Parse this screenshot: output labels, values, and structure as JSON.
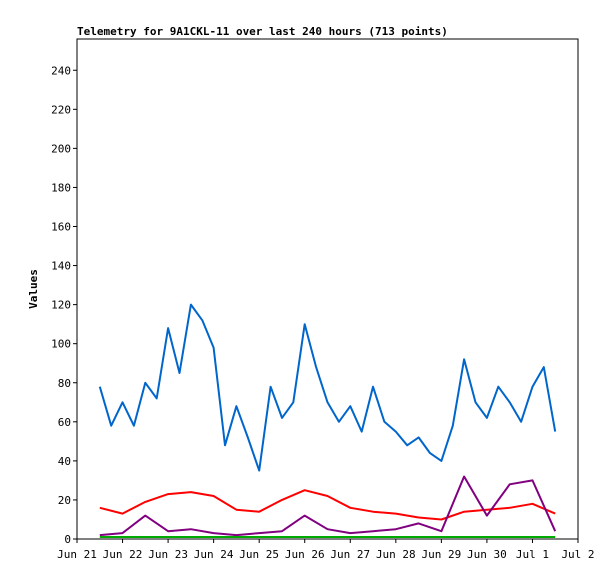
{
  "chart_data": {
    "type": "line",
    "title": "Telemetry for 9A1CKL-11 over last 240 hours (713 points)",
    "xlabel": "",
    "ylabel": "Values",
    "ylim": [
      0,
      256
    ],
    "yticks": [
      0,
      20,
      40,
      60,
      80,
      100,
      120,
      140,
      160,
      180,
      200,
      220,
      240
    ],
    "xlim": [
      "2021-06-21",
      "2021-07-02"
    ],
    "xticks": [
      "Jun 21",
      "Jun 22",
      "Jun 23",
      "Jun 24",
      "Jun 25",
      "Jun 26",
      "Jun 27",
      "Jun 28",
      "Jun 29",
      "Jun 30",
      "Jul 1",
      "Jul 2"
    ],
    "grid": false,
    "legend": "none",
    "series": [
      {
        "color": "#0066cc",
        "points": [
          [
            "2021-06-21T12:00",
            78
          ],
          [
            "2021-06-21T18:00",
            58
          ],
          [
            "2021-06-22T00:00",
            70
          ],
          [
            "2021-06-22T06:00",
            58
          ],
          [
            "2021-06-22T12:00",
            80
          ],
          [
            "2021-06-22T18:00",
            72
          ],
          [
            "2021-06-23T00:00",
            108
          ],
          [
            "2021-06-23T06:00",
            85
          ],
          [
            "2021-06-23T12:00",
            120
          ],
          [
            "2021-06-23T18:00",
            112
          ],
          [
            "2021-06-24T00:00",
            98
          ],
          [
            "2021-06-24T06:00",
            48
          ],
          [
            "2021-06-24T12:00",
            68
          ],
          [
            "2021-06-24T18:00",
            52
          ],
          [
            "2021-06-25T00:00",
            35
          ],
          [
            "2021-06-25T06:00",
            78
          ],
          [
            "2021-06-25T12:00",
            62
          ],
          [
            "2021-06-25T18:00",
            70
          ],
          [
            "2021-06-26T00:00",
            110
          ],
          [
            "2021-06-26T06:00",
            88
          ],
          [
            "2021-06-26T12:00",
            70
          ],
          [
            "2021-06-26T18:00",
            60
          ],
          [
            "2021-06-27T00:00",
            68
          ],
          [
            "2021-06-27T06:00",
            55
          ],
          [
            "2021-06-27T12:00",
            78
          ],
          [
            "2021-06-27T18:00",
            60
          ],
          [
            "2021-06-28T00:00",
            55
          ],
          [
            "2021-06-28T06:00",
            48
          ],
          [
            "2021-06-28T12:00",
            52
          ],
          [
            "2021-06-28T18:00",
            44
          ],
          [
            "2021-06-29T00:00",
            40
          ],
          [
            "2021-06-29T06:00",
            58
          ],
          [
            "2021-06-29T12:00",
            92
          ],
          [
            "2021-06-29T18:00",
            70
          ],
          [
            "2021-06-30T00:00",
            62
          ],
          [
            "2021-06-30T06:00",
            78
          ],
          [
            "2021-06-30T12:00",
            70
          ],
          [
            "2021-06-30T18:00",
            60
          ],
          [
            "2021-07-01T00:00",
            78
          ],
          [
            "2021-07-01T06:00",
            88
          ],
          [
            "2021-07-01T12:00",
            55
          ]
        ]
      },
      {
        "color": "#ff0000",
        "points": [
          [
            "2021-06-21T12:00",
            16
          ],
          [
            "2021-06-22T00:00",
            13
          ],
          [
            "2021-06-22T12:00",
            19
          ],
          [
            "2021-06-23T00:00",
            23
          ],
          [
            "2021-06-23T12:00",
            24
          ],
          [
            "2021-06-24T00:00",
            22
          ],
          [
            "2021-06-24T12:00",
            15
          ],
          [
            "2021-06-25T00:00",
            14
          ],
          [
            "2021-06-25T12:00",
            20
          ],
          [
            "2021-06-26T00:00",
            25
          ],
          [
            "2021-06-26T12:00",
            22
          ],
          [
            "2021-06-27T00:00",
            16
          ],
          [
            "2021-06-27T12:00",
            14
          ],
          [
            "2021-06-28T00:00",
            13
          ],
          [
            "2021-06-28T12:00",
            11
          ],
          [
            "2021-06-29T00:00",
            10
          ],
          [
            "2021-06-29T12:00",
            14
          ],
          [
            "2021-06-30T00:00",
            15
          ],
          [
            "2021-06-30T12:00",
            16
          ],
          [
            "2021-07-01T00:00",
            18
          ],
          [
            "2021-07-01T12:00",
            13
          ]
        ]
      },
      {
        "color": "#800080",
        "points": [
          [
            "2021-06-21T12:00",
            2
          ],
          [
            "2021-06-22T00:00",
            3
          ],
          [
            "2021-06-22T12:00",
            12
          ],
          [
            "2021-06-23T00:00",
            4
          ],
          [
            "2021-06-23T12:00",
            5
          ],
          [
            "2021-06-24T00:00",
            3
          ],
          [
            "2021-06-24T12:00",
            2
          ],
          [
            "2021-06-25T00:00",
            3
          ],
          [
            "2021-06-25T12:00",
            4
          ],
          [
            "2021-06-26T00:00",
            12
          ],
          [
            "2021-06-26T12:00",
            5
          ],
          [
            "2021-06-27T00:00",
            3
          ],
          [
            "2021-06-27T12:00",
            4
          ],
          [
            "2021-06-28T00:00",
            5
          ],
          [
            "2021-06-28T12:00",
            8
          ],
          [
            "2021-06-29T00:00",
            4
          ],
          [
            "2021-06-29T12:00",
            32
          ],
          [
            "2021-06-30T00:00",
            12
          ],
          [
            "2021-06-30T12:00",
            28
          ],
          [
            "2021-07-01T00:00",
            30
          ],
          [
            "2021-07-01T12:00",
            4
          ]
        ]
      },
      {
        "color": "#00aa00",
        "points": [
          [
            "2021-06-21T12:00",
            1
          ],
          [
            "2021-07-01T12:00",
            1
          ]
        ]
      }
    ]
  }
}
